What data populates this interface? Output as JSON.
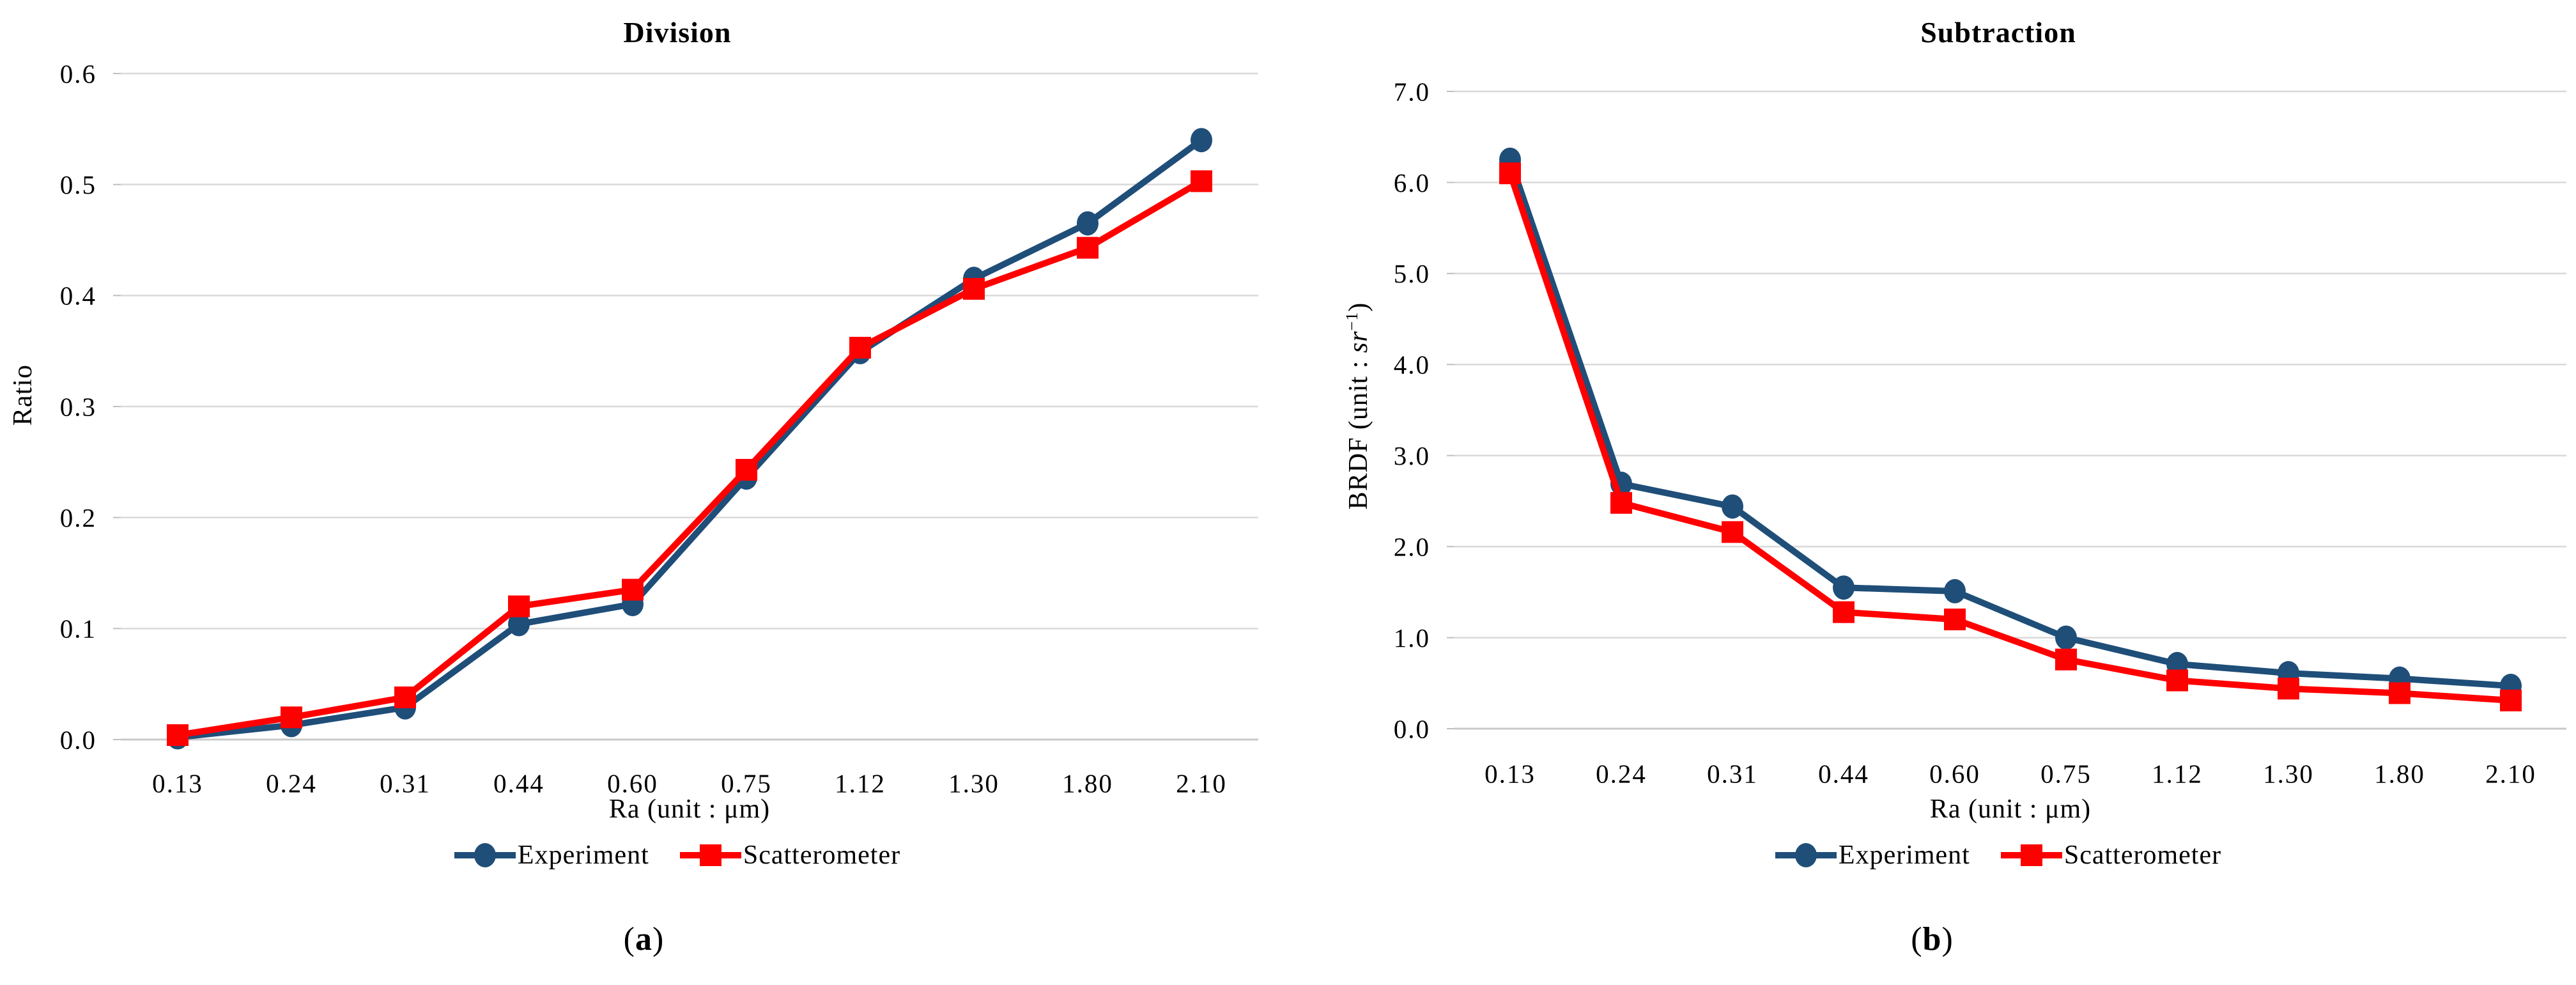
{
  "colors": {
    "background": "#FFFFFF",
    "grid": "#D9D9D9",
    "axis_line": "#C9C9C9",
    "tick": "#BFBFBF",
    "text": "#000000",
    "experiment_blue": "#1F4E79",
    "scatterometer_red": "#FF0000"
  },
  "chart_data": [
    {
      "type": "line",
      "title": "Division",
      "xlabel": "Ra (unit : μm)",
      "ylabel": "Ratio",
      "caption": "(a)",
      "caption_parts": {
        "open": "(",
        "letter": "a",
        "close": ")"
      },
      "categories": [
        "0.13",
        "0.24",
        "0.31",
        "0.44",
        "0.60",
        "0.75",
        "1.12",
        "1.30",
        "1.80",
        "2.10"
      ],
      "series": [
        {
          "name": "Experiment",
          "color": "#1F4E79",
          "marker": "circle",
          "values": [
            0.002,
            0.013,
            0.029,
            0.104,
            0.122,
            0.236,
            0.349,
            0.415,
            0.465,
            0.54
          ]
        },
        {
          "name": "Scatterometer",
          "color": "#FF0000",
          "marker": "square",
          "values": [
            0.004,
            0.02,
            0.038,
            0.12,
            0.135,
            0.243,
            0.353,
            0.406,
            0.443,
            0.503
          ]
        }
      ],
      "ylim": [
        0.0,
        0.6
      ],
      "ytick_step": 0.1,
      "ytick_labels": [
        "0.0",
        "0.1",
        "0.2",
        "0.3",
        "0.4",
        "0.5",
        "0.6"
      ],
      "grid": true,
      "legend_position": "bottom"
    },
    {
      "type": "line",
      "title": "Subtraction",
      "xlabel": "Ra (unit : μm)",
      "ylabel": "BRDF (unit : sr⁻¹)",
      "ylabel_parts": {
        "prefix": "BRDF (unit : ",
        "italic": "sr",
        "superscript": "−1",
        "suffix": ")"
      },
      "caption": "(b)",
      "caption_parts": {
        "open": "(",
        "letter": "b",
        "close": ")"
      },
      "categories": [
        "0.13",
        "0.24",
        "0.31",
        "0.44",
        "0.60",
        "0.75",
        "1.12",
        "1.30",
        "1.80",
        "2.10"
      ],
      "series": [
        {
          "name": "Experiment",
          "color": "#1F4E79",
          "marker": "circle",
          "values": [
            6.25,
            2.69,
            2.44,
            1.55,
            1.51,
            1.0,
            0.71,
            0.61,
            0.55,
            0.47
          ]
        },
        {
          "name": "Scatterometer",
          "color": "#FF0000",
          "marker": "square",
          "values": [
            6.1,
            2.48,
            2.16,
            1.28,
            1.2,
            0.76,
            0.53,
            0.44,
            0.39,
            0.31
          ]
        }
      ],
      "ylim": [
        0.0,
        7.0
      ],
      "ytick_step": 1.0,
      "ytick_labels": [
        "0.0",
        "1.0",
        "2.0",
        "3.0",
        "4.0",
        "5.0",
        "6.0",
        "7.0"
      ],
      "grid": true,
      "legend_position": "bottom"
    }
  ]
}
